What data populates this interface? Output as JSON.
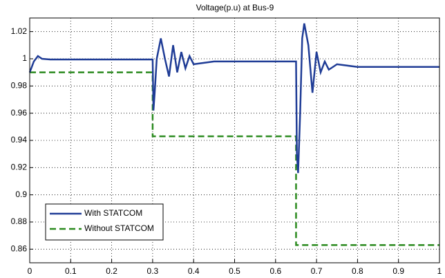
{
  "chart_data": {
    "type": "line",
    "title": "Voltage(p.u) at Bus-9",
    "x": [
      0,
      0.01,
      0.02,
      0.03,
      0.05,
      0.1,
      0.2,
      0.3,
      0.3,
      0.302,
      0.305,
      0.31,
      0.32,
      0.33,
      0.34,
      0.35,
      0.36,
      0.37,
      0.38,
      0.39,
      0.4,
      0.45,
      0.5,
      0.6,
      0.65,
      0.65,
      0.652,
      0.655,
      0.66,
      0.665,
      0.67,
      0.68,
      0.69,
      0.7,
      0.71,
      0.72,
      0.73,
      0.75,
      0.8,
      0.9,
      1
    ],
    "series": [
      {
        "name": "With STATCOM",
        "color": "#1f3c96",
        "dashed": false,
        "values": [
          0.99,
          0.998,
          1.002,
          1.0,
          0.9995,
          0.9995,
          0.9995,
          0.9995,
          0.9995,
          0.962,
          0.975,
          1.0,
          1.015,
          1.0,
          0.987,
          1.01,
          0.99,
          1.005,
          0.993,
          1.002,
          0.996,
          0.998,
          0.998,
          0.998,
          0.998,
          0.998,
          0.93,
          0.916,
          0.96,
          1.015,
          1.026,
          1.01,
          0.975,
          1.005,
          0.99,
          0.998,
          0.992,
          0.996,
          0.994,
          0.994,
          0.994
        ]
      },
      {
        "name": "Without STATCOM",
        "color": "#2a8a1e",
        "dashed": true,
        "values": [
          0.99,
          0.99,
          0.99,
          0.99,
          0.99,
          0.99,
          0.99,
          0.99,
          0.943,
          0.943,
          0.943,
          0.943,
          0.943,
          0.943,
          0.943,
          0.943,
          0.943,
          0.943,
          0.943,
          0.943,
          0.943,
          0.943,
          0.943,
          0.943,
          0.943,
          0.863,
          0.863,
          0.863,
          0.863,
          0.863,
          0.863,
          0.863,
          0.863,
          0.863,
          0.863,
          0.863,
          0.863,
          0.863,
          0.863,
          0.863,
          0.863
        ]
      }
    ],
    "xlim": [
      0,
      1
    ],
    "xticks": [
      0,
      0.1,
      0.2,
      0.3,
      0.4,
      0.5,
      0.6,
      0.7,
      0.8,
      0.9,
      1
    ],
    "ylim": [
      0.85,
      1.03
    ],
    "yticks": [
      0.86,
      0.88,
      0.9,
      0.92,
      0.94,
      0.96,
      0.98,
      1,
      1.02
    ],
    "grid": true,
    "legend": "lower left"
  }
}
